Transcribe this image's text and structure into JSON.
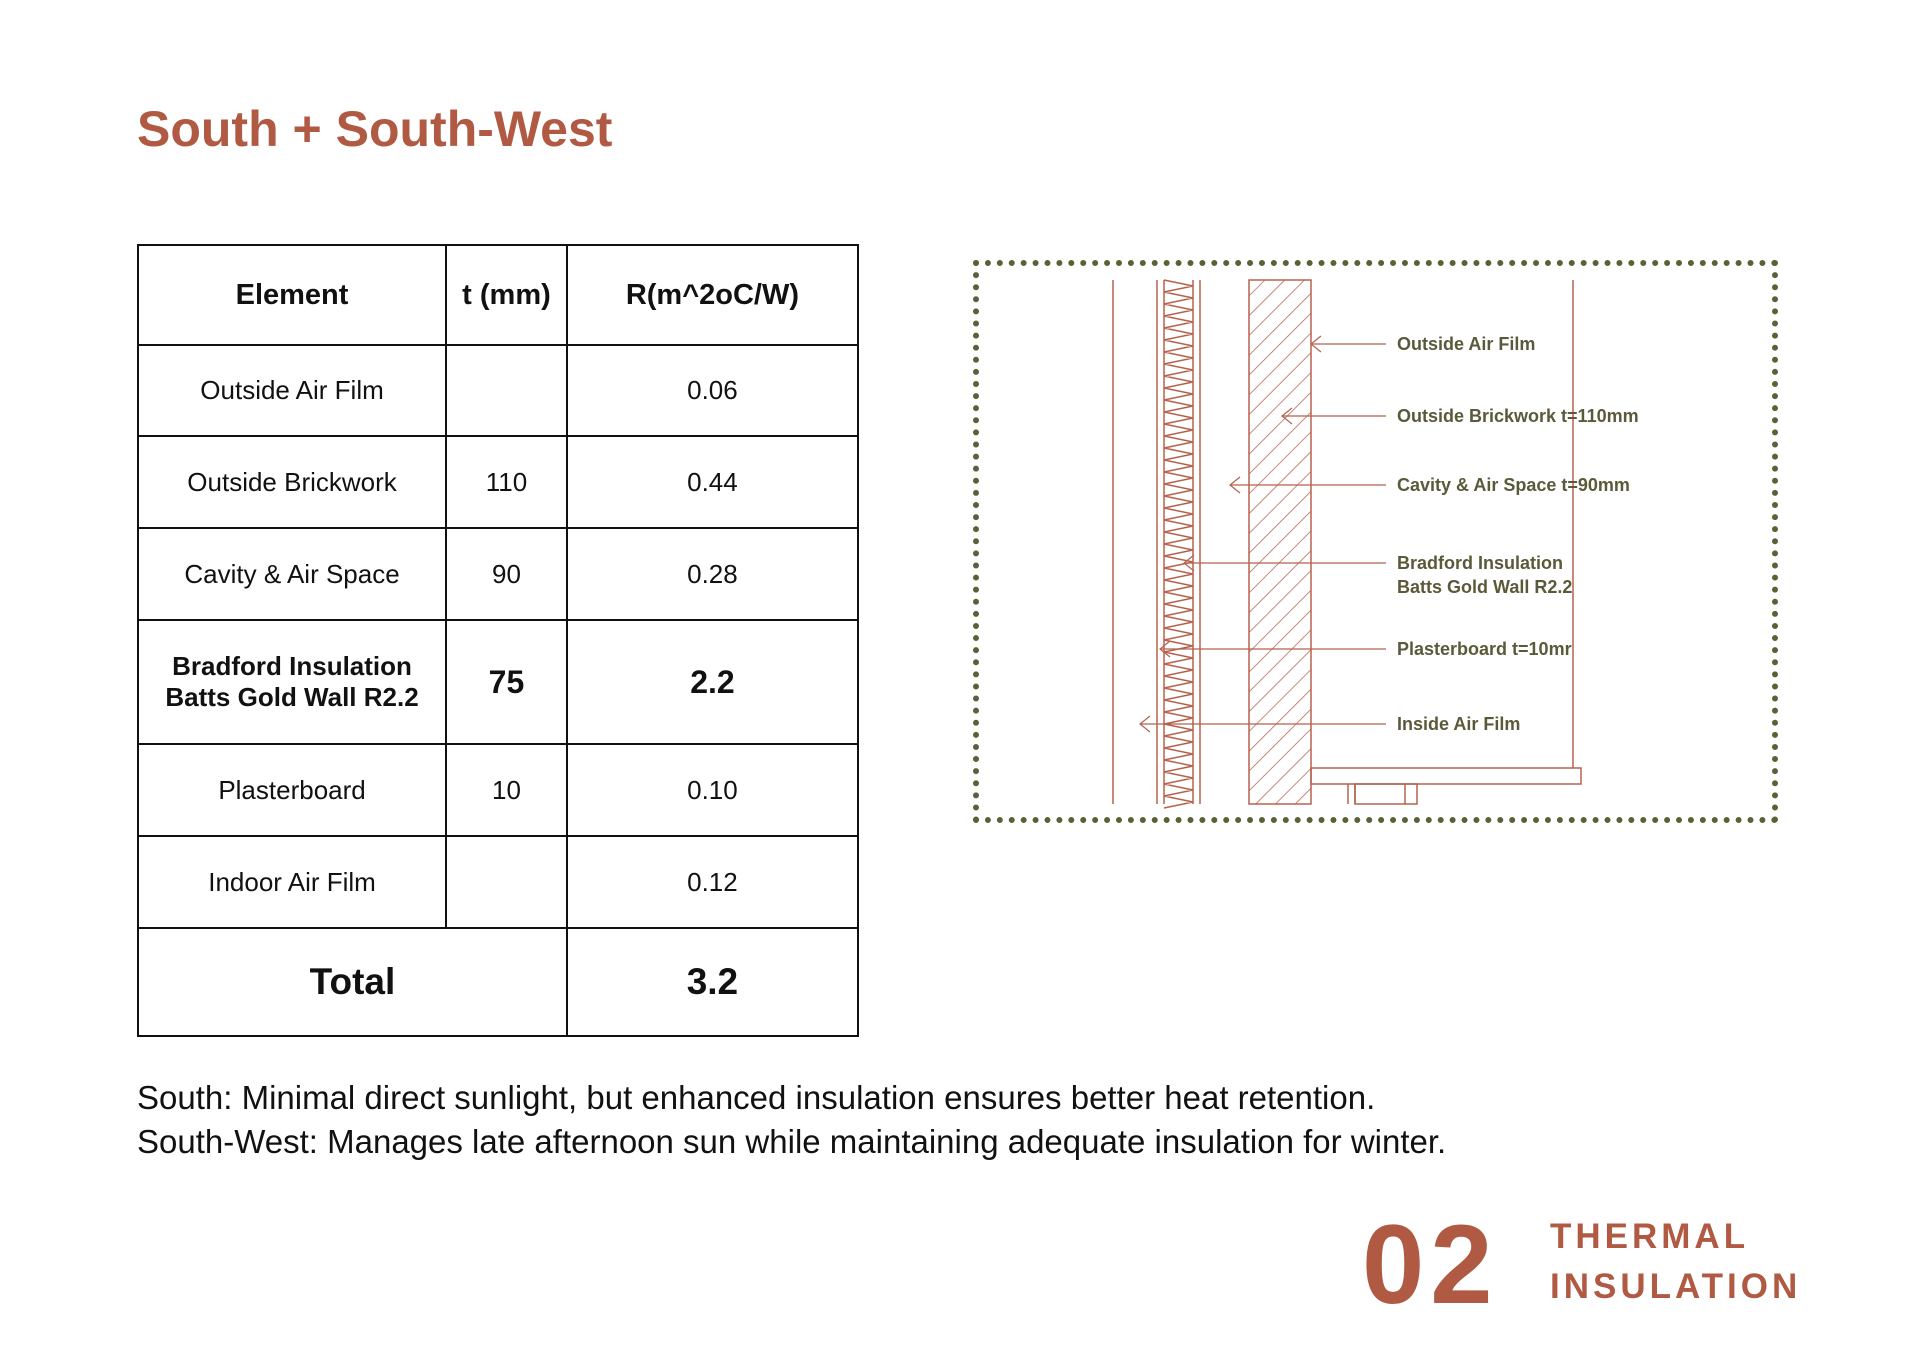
{
  "header": {
    "title": "South + South-West"
  },
  "table": {
    "columns": [
      "Element",
      "t (mm)",
      "R(m^2oC/W)"
    ],
    "rows": [
      {
        "element": [
          "Outside Air Film"
        ],
        "r": "0.06"
      },
      {
        "element": [
          "Outside Brickwork"
        ],
        "t": "110",
        "r": "0.44"
      },
      {
        "element": [
          "Cavity & Air Space"
        ],
        "t": "90",
        "r": "0.28"
      },
      {
        "element": [
          "Bradford Insulation",
          "Batts Gold Wall R2.2"
        ],
        "t": "75",
        "r": "2.2",
        "bold": true
      },
      {
        "element": [
          "Plasterboard"
        ],
        "t": "10",
        "r": "0.10"
      },
      {
        "element": [
          "Indoor Air Film"
        ],
        "r": "0.12"
      }
    ],
    "total": {
      "label": "Total",
      "r": "3.2"
    }
  },
  "diagram": {
    "labels": [
      [
        "Outside Air Film"
      ],
      [
        "Outside Brickwork t=110mm"
      ],
      [
        "Cavity & Air Space t=90mm"
      ],
      [
        "Bradford Insulation",
        "Batts Gold Wall R2.2"
      ],
      [
        "Plasterboard t=10mr"
      ],
      [
        "Inside Air Film"
      ]
    ]
  },
  "notes": [
    "South: Minimal direct sunlight, but enhanced insulation ensures better heat retention.",
    "South-West: Manages late afternoon sun while maintaining adequate insulation for winter."
  ],
  "footer": {
    "number": "02",
    "lines": [
      "THERMAL",
      "INSULATION"
    ]
  }
}
